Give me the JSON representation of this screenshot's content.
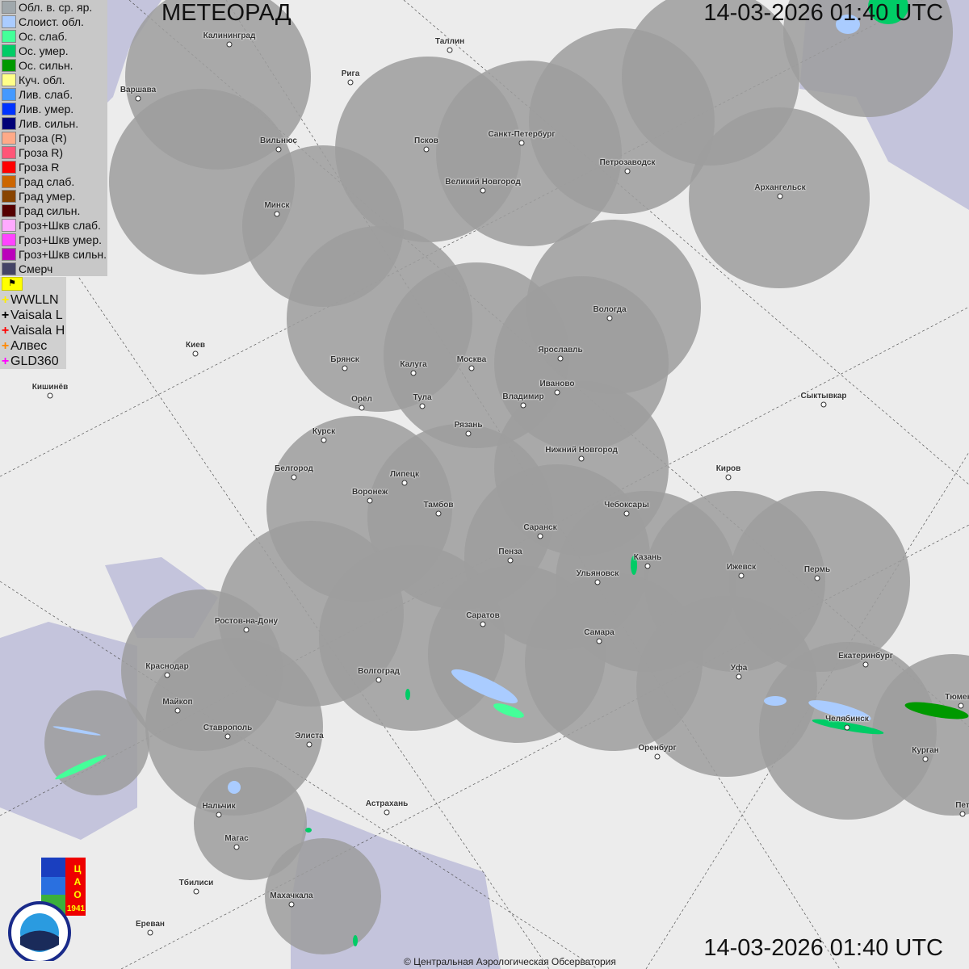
{
  "title": "МЕТЕОРАД",
  "timestamp": "14-03-2026  01:40 UTC",
  "copyright": "© Центральная Аэрологическая Обсерватория",
  "legend": [
    {
      "label": "Обл. в. ср. яр.",
      "color": "#a0a8ac"
    },
    {
      "label": "Слоист. обл.",
      "color": "#aaccff"
    },
    {
      "label": "Ос. слаб.",
      "color": "#44ff99"
    },
    {
      "label": "Ос. умер.",
      "color": "#00cc66"
    },
    {
      "label": "Ос. сильн.",
      "color": "#009900"
    },
    {
      "label": "Куч. обл.",
      "color": "#ffff88"
    },
    {
      "label": "Лив. слаб.",
      "color": "#4499ff"
    },
    {
      "label": "Лив. умер.",
      "color": "#0033ff"
    },
    {
      "label": "Лив. сильн.",
      "color": "#000077"
    },
    {
      "label": "Гроза (R)",
      "color": "#ffaa88"
    },
    {
      "label": "Гроза R)",
      "color": "#ff5577"
    },
    {
      "label": "Гроза R",
      "color": "#ff0000"
    },
    {
      "label": "Град слаб.",
      "color": "#cc6600"
    },
    {
      "label": "Град умер.",
      "color": "#884400"
    },
    {
      "label": "Град сильн.",
      "color": "#550000"
    },
    {
      "label": "Гроз+Шкв слаб.",
      "color": "#ffaaff"
    },
    {
      "label": "Гроз+Шкв умер.",
      "color": "#ff44ff"
    },
    {
      "label": "Гроз+Шкв сильн.",
      "color": "#bb00bb"
    },
    {
      "label": "Смерч",
      "color": "#444466"
    }
  ],
  "lightning_toggle_icon": "flag-icon",
  "lightning": [
    {
      "label": "WWLLN",
      "color": "#ffee00"
    },
    {
      "label": "Vaisala L",
      "color": "#000000"
    },
    {
      "label": "Vaisala H",
      "color": "#ff0000"
    },
    {
      "label": "Алвес",
      "color": "#ff8800"
    },
    {
      "label": "GLD360",
      "color": "#ff00ff"
    }
  ],
  "logos": {
    "cao": "ЦАО 1941",
    "roshydromet": "РОСГИДРОМЕТ ROSHYDROMET"
  },
  "cities": [
    "Калининград",
    "Таллин",
    "Рига",
    "Варшава",
    "Вильнюс",
    "Псков",
    "Санкт-Петербург",
    "Петрозаводск",
    "Великий Новгород",
    "Архангельск",
    "Минск",
    "Вологда",
    "Киев",
    "Брянск",
    "Калуга",
    "Москва",
    "Ярославль",
    "Иваново",
    "Кишинёв",
    "Орёл",
    "Тула",
    "Владимир",
    "Сыктывкар",
    "Рязань",
    "Курск",
    "Нижний Новгород",
    "Белгород",
    "Липецк",
    "Киров",
    "Воронеж",
    "Тамбов",
    "Чебоксары",
    "Саранск",
    "Пенза",
    "Казань",
    "Ижевск",
    "Пермь",
    "Ульяновск",
    "Ростов-на-Дону",
    "Саратов",
    "Самара",
    "Краснодар",
    "Волгоград",
    "Уфа",
    "Екатеринбург",
    "Майкоп",
    "Тюмень",
    "Челябинск",
    "Ставрополь",
    "Элиста",
    "Оренбург",
    "Курган",
    "Нальчик",
    "Астрахань",
    "Пет",
    "Магас",
    "Тбилиси",
    "Махачкала",
    "Ереван"
  ]
}
